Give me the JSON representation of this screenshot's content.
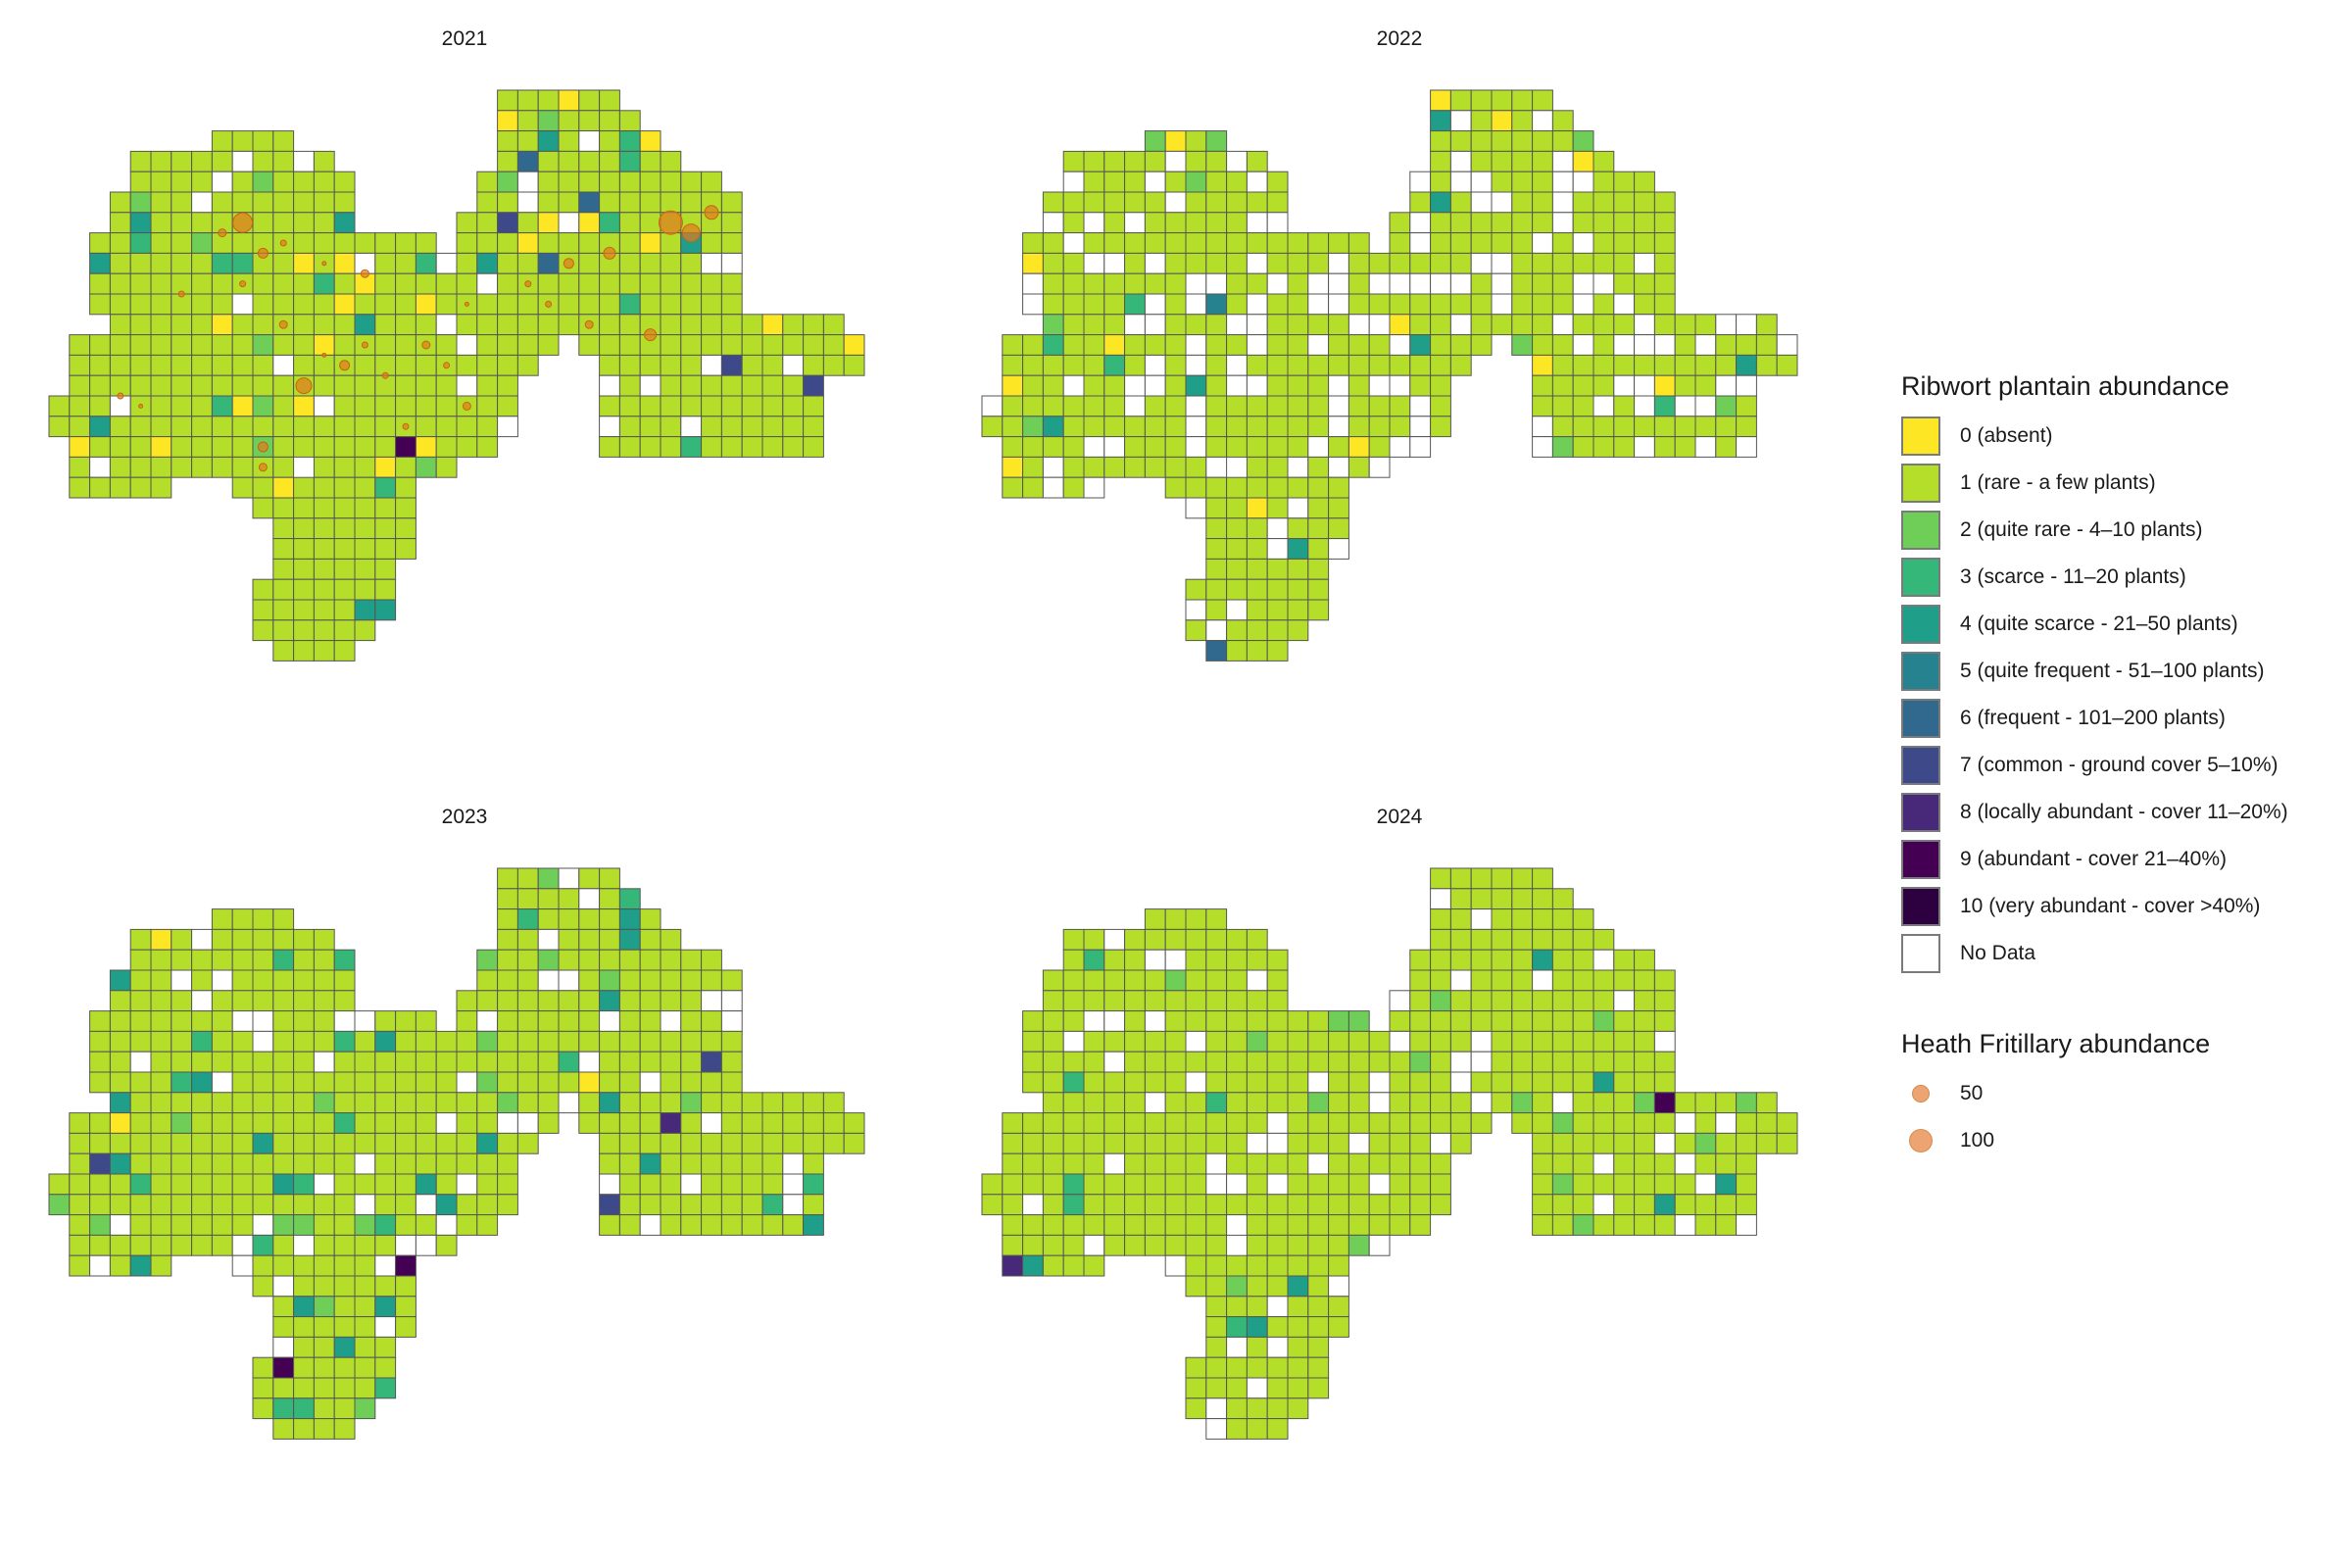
{
  "panels": [
    {
      "year": "2021",
      "has_points": true
    },
    {
      "year": "2022",
      "has_points": false
    },
    {
      "year": "2023",
      "has_points": false
    },
    {
      "year": "2024",
      "has_points": false
    }
  ],
  "legend_plantain": {
    "title": "Ribwort plantain abundance",
    "items": [
      {
        "label": "0 (absent)",
        "color": "#fde725"
      },
      {
        "label": "1 (rare - a few plants)",
        "color": "#b5de2b"
      },
      {
        "label": "2 (quite rare - 4–10 plants)",
        "color": "#6ece58"
      },
      {
        "label": "3 (scarce - 11–20 plants)",
        "color": "#35b779"
      },
      {
        "label": "4 (quite scarce - 21–50 plants)",
        "color": "#1f9e89"
      },
      {
        "label": "5 (quite frequent - 51–100 plants)",
        "color": "#26828e"
      },
      {
        "label": "6 (frequent - 101–200 plants)",
        "color": "#31688e"
      },
      {
        "label": "7 (common - ground cover 5–10%)",
        "color": "#3e4989"
      },
      {
        "label": "8 (locally abundant - cover 11–20%)",
        "color": "#482878"
      },
      {
        "label": "9 (abundant - cover 21–40%)",
        "color": "#440154"
      },
      {
        "label": "10 (very abundant - cover >40%)",
        "color": "#2d0140"
      },
      {
        "label": "No Data",
        "color": "#ffffff"
      }
    ]
  },
  "legend_fritillary": {
    "title": "Heath Fritillary abundance",
    "items": [
      {
        "label": "50",
        "value": 50
      },
      {
        "label": "100",
        "value": 100
      }
    ]
  }
}
